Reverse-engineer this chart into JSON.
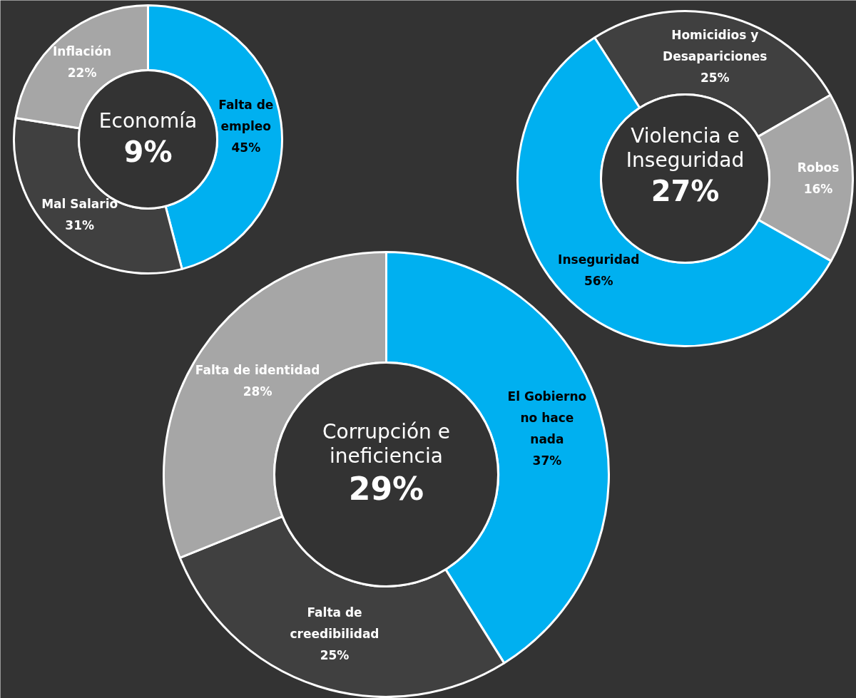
{
  "chart_data": [
    {
      "type": "donut",
      "title": "Economía",
      "subtitle": "9%",
      "categories": [
        "Falta de empleo",
        "Mal Salario",
        "Inflación"
      ],
      "values": [
        45,
        31,
        22
      ],
      "value_labels": [
        "45%",
        "31%",
        "22%"
      ],
      "colors": [
        "#00b0f0",
        "#404040",
        "#a6a6a6"
      ]
    },
    {
      "type": "donut",
      "title": "Violencia e Inseguridad",
      "subtitle": "27%",
      "categories": [
        "Homicidios y Desapariciones",
        "Robos",
        "Inseguridad"
      ],
      "values": [
        25,
        16,
        56
      ],
      "value_labels": [
        "25%",
        "16%",
        "56%"
      ],
      "colors": [
        "#404040",
        "#a6a6a6",
        "#00b0f0"
      ]
    },
    {
      "type": "donut",
      "title": "Corrupción e ineficiencia",
      "subtitle": "29%",
      "categories": [
        "El Gobierno no hace nada",
        "Falta de creedibilidad",
        "Falta de identidad"
      ],
      "values": [
        37,
        25,
        28
      ],
      "value_labels": [
        "37%",
        "25%",
        "28%"
      ],
      "colors": [
        "#00b0f0",
        "#404040",
        "#a6a6a6"
      ]
    }
  ]
}
